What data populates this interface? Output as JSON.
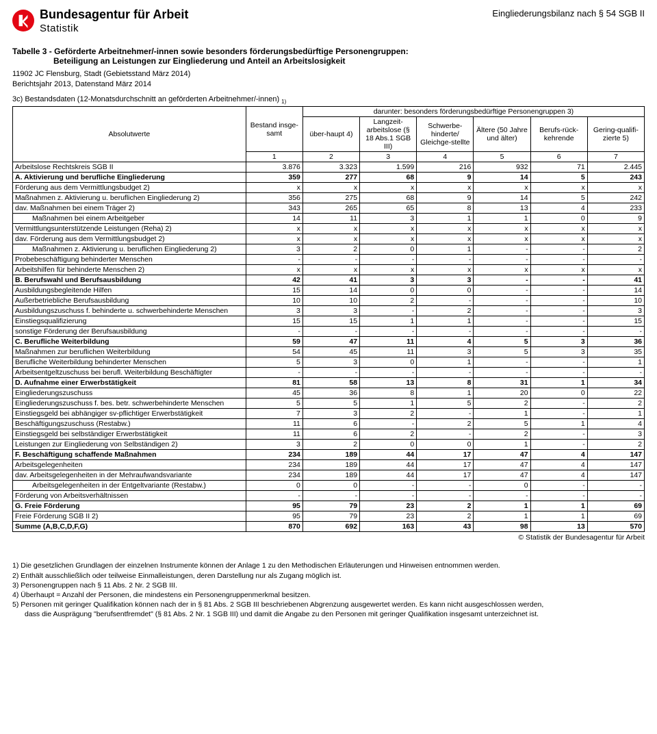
{
  "header": {
    "org": "Bundesagentur für Arbeit",
    "dept": "Statistik",
    "right": "Eingliederungsbilanz nach § 54 SGB II"
  },
  "title": {
    "line1": "Tabelle 3 - Geförderte Arbeitnehmer/-innen sowie besonders förderungsbedürftige Personengruppen:",
    "line2": "Beteiligung an Leistungen zur Eingliederung und Anteil an Arbeitslosigkeit"
  },
  "meta": {
    "region": "11902 JC Flensburg, Stadt (Gebietsstand März 2014)",
    "period": "Berichtsjahr 2013, Datenstand März 2014"
  },
  "section": "3c) Bestandsdaten (12-Monatsdurchschnitt an geförderten Arbeitnehmer/-innen) ",
  "section_note": "1)",
  "thead": {
    "rowlabel": "Absolutwerte",
    "c1": "Bestand insge-samt",
    "group": "darunter: besonders förderungsbedürftige Personengruppen 3)",
    "c2": "über-haupt 4)",
    "c3": "Langzeit-arbeitslose (§ 18 Abs.1 SGB III)",
    "c4": "Schwerbe-hinderte/ Gleichge-stellte",
    "c5": "Ältere (50 Jahre und älter)",
    "c6": "Berufs-rück-kehrende",
    "c7": "Gering-qualifi-zierte 5)",
    "nums": [
      "1",
      "2",
      "3",
      "4",
      "5",
      "6",
      "7"
    ]
  },
  "rows": [
    {
      "label": "Arbeitslose Rechtskreis SGB II",
      "indent": 0,
      "bold": false,
      "v": [
        "3.876",
        "3.323",
        "1.599",
        "216",
        "932",
        "71",
        "2.445"
      ]
    },
    {
      "label": "A. Aktivierung und berufliche Eingliederung",
      "indent": 0,
      "bold": true,
      "v": [
        "359",
        "277",
        "68",
        "9",
        "14",
        "5",
        "243"
      ]
    },
    {
      "label": "Förderung aus dem Vermittlungsbudget 2)",
      "indent": 0,
      "bold": false,
      "v": [
        "x",
        "x",
        "x",
        "x",
        "x",
        "x",
        "x"
      ]
    },
    {
      "label": "Maßnahmen z. Aktivierung u. beruflichen Eingliederung 2)",
      "indent": 0,
      "bold": false,
      "v": [
        "356",
        "275",
        "68",
        "9",
        "14",
        "5",
        "242"
      ]
    },
    {
      "label": "dav. Maßnahmen bei einem Träger 2)",
      "indent": 0,
      "bold": false,
      "v": [
        "343",
        "265",
        "65",
        "8",
        "13",
        "4",
        "233"
      ]
    },
    {
      "label": "Maßnahmen bei einem Arbeitgeber",
      "indent": 2,
      "bold": false,
      "v": [
        "14",
        "11",
        "3",
        "1",
        "1",
        "0",
        "9"
      ]
    },
    {
      "label": "Vermittlungsunterstützende Leistungen (Reha) 2)",
      "indent": 0,
      "bold": false,
      "v": [
        "x",
        "x",
        "x",
        "x",
        "x",
        "x",
        "x"
      ]
    },
    {
      "label": "dav. Förderung aus dem Vermittlungsbudget 2)",
      "indent": 0,
      "bold": false,
      "v": [
        "x",
        "x",
        "x",
        "x",
        "x",
        "x",
        "x"
      ]
    },
    {
      "label": "Maßnahmen z. Aktivierung u. beruflichen Eingliederung 2)",
      "indent": 2,
      "bold": false,
      "v": [
        "3",
        "2",
        "0",
        "1",
        "-",
        "-",
        "2"
      ]
    },
    {
      "label": "Probebeschäftigung behinderter Menschen",
      "indent": 0,
      "bold": false,
      "v": [
        "-",
        "-",
        "-",
        "-",
        "-",
        "-",
        "-"
      ]
    },
    {
      "label": "Arbeitshilfen für behinderte Menschen 2)",
      "indent": 0,
      "bold": false,
      "v": [
        "x",
        "x",
        "x",
        "x",
        "x",
        "x",
        "x"
      ]
    },
    {
      "label": "B. Berufswahl und Berufsausbildung",
      "indent": 0,
      "bold": true,
      "v": [
        "42",
        "41",
        "3",
        "3",
        "-",
        "-",
        "41"
      ]
    },
    {
      "label": "Ausbildungsbegleitende Hilfen",
      "indent": 0,
      "bold": false,
      "v": [
        "15",
        "14",
        "0",
        "0",
        "-",
        "-",
        "14"
      ]
    },
    {
      "label": "Außerbetriebliche Berufsausbildung",
      "indent": 0,
      "bold": false,
      "v": [
        "10",
        "10",
        "2",
        "-",
        "-",
        "-",
        "10"
      ]
    },
    {
      "label": "Ausbildungszuschuss f. behinderte u. schwerbehinderte Menschen",
      "indent": 0,
      "bold": false,
      "v": [
        "3",
        "3",
        "-",
        "2",
        "-",
        "-",
        "3"
      ]
    },
    {
      "label": "Einstiegsqualifizierung",
      "indent": 0,
      "bold": false,
      "v": [
        "15",
        "15",
        "1",
        "1",
        "-",
        "-",
        "15"
      ]
    },
    {
      "label": "sonstige Förderung der Berufsausbildung",
      "indent": 0,
      "bold": false,
      "v": [
        "-",
        "-",
        "-",
        "-",
        "-",
        "-",
        "-"
      ]
    },
    {
      "label": "C. Berufliche Weiterbildung",
      "indent": 0,
      "bold": true,
      "v": [
        "59",
        "47",
        "11",
        "4",
        "5",
        "3",
        "36"
      ]
    },
    {
      "label": "Maßnahmen zur beruflichen Weiterbildung",
      "indent": 0,
      "bold": false,
      "v": [
        "54",
        "45",
        "11",
        "3",
        "5",
        "3",
        "35"
      ]
    },
    {
      "label": "Berufliche Weiterbildung behinderter Menschen",
      "indent": 0,
      "bold": false,
      "v": [
        "5",
        "3",
        "0",
        "1",
        "-",
        "-",
        "1"
      ]
    },
    {
      "label": "Arbeitsentgeltzuschuss bei berufl. Weiterbildung Beschäftigter",
      "indent": 0,
      "bold": false,
      "v": [
        "-",
        "-",
        "-",
        "-",
        "-",
        "-",
        "-"
      ]
    },
    {
      "label": "D. Aufnahme einer Erwerbstätigkeit",
      "indent": 0,
      "bold": true,
      "v": [
        "81",
        "58",
        "13",
        "8",
        "31",
        "1",
        "34"
      ]
    },
    {
      "label": "Eingliederungszuschuss",
      "indent": 0,
      "bold": false,
      "v": [
        "45",
        "36",
        "8",
        "1",
        "20",
        "0",
        "22"
      ]
    },
    {
      "label": "Eingliederungszuschuss f. bes. betr. schwerbehinderte Menschen",
      "indent": 0,
      "bold": false,
      "v": [
        "5",
        "5",
        "1",
        "5",
        "2",
        "-",
        "2"
      ]
    },
    {
      "label": "Einstiegsgeld bei abhängiger sv-pflichtiger Erwerbstätigkeit",
      "indent": 0,
      "bold": false,
      "v": [
        "7",
        "3",
        "2",
        "-",
        "1",
        "-",
        "1"
      ]
    },
    {
      "label": "Beschäftigungszuschuss (Restabw.)",
      "indent": 0,
      "bold": false,
      "v": [
        "11",
        "6",
        "-",
        "2",
        "5",
        "1",
        "4"
      ]
    },
    {
      "label": "Einstiegsgeld bei selbständiger Erwerbstätigkeit",
      "indent": 0,
      "bold": false,
      "v": [
        "11",
        "6",
        "2",
        "-",
        "2",
        "-",
        "3"
      ]
    },
    {
      "label": "Leistungen zur Eingliederung von Selbständigen 2)",
      "indent": 0,
      "bold": false,
      "v": [
        "3",
        "2",
        "0",
        "0",
        "1",
        "-",
        "2"
      ]
    },
    {
      "label": "F. Beschäftigung schaffende Maßnahmen",
      "indent": 0,
      "bold": true,
      "v": [
        "234",
        "189",
        "44",
        "17",
        "47",
        "4",
        "147"
      ]
    },
    {
      "label": "Arbeitsgelegenheiten",
      "indent": 0,
      "bold": false,
      "v": [
        "234",
        "189",
        "44",
        "17",
        "47",
        "4",
        "147"
      ]
    },
    {
      "label": "dav. Arbeitsgelegenheiten in der Mehraufwandsvariante",
      "indent": 0,
      "bold": false,
      "v": [
        "234",
        "189",
        "44",
        "17",
        "47",
        "4",
        "147"
      ]
    },
    {
      "label": "Arbeitsgelegenheiten in der Entgeltvariante (Restabw.)",
      "indent": 2,
      "bold": false,
      "v": [
        "0",
        "0",
        "-",
        "-",
        "0",
        "-",
        "-"
      ]
    },
    {
      "label": "Förderung von Arbeitsverhältnissen",
      "indent": 0,
      "bold": false,
      "v": [
        "-",
        "-",
        "-",
        "-",
        "-",
        "-",
        "-"
      ]
    },
    {
      "label": "G. Freie Förderung",
      "indent": 0,
      "bold": true,
      "v": [
        "95",
        "79",
        "23",
        "2",
        "1",
        "1",
        "69"
      ]
    },
    {
      "label": "Freie Förderung SGB II 2)",
      "indent": 0,
      "bold": false,
      "v": [
        "95",
        "79",
        "23",
        "2",
        "1",
        "1",
        "69"
      ]
    },
    {
      "label": "Summe (A,B,C,D,F,G)",
      "indent": 0,
      "bold": true,
      "v": [
        "870",
        "692",
        "163",
        "43",
        "98",
        "13",
        "570"
      ]
    }
  ],
  "credit": "© Statistik der Bundesagentur für Arbeit",
  "footnotes": [
    "1) Die gesetzlichen Grundlagen der einzelnen Instrumente können der Anlage 1 zu den Methodischen Erläuterungen und Hinweisen entnommen werden.",
    "2) Enthält ausschließlich oder teilweise Einmalleistungen, deren Darstellung nur als Zugang möglich ist.",
    "3) Personengruppen nach § 11 Abs. 2 Nr. 2 SGB III.",
    "4) Überhaupt = Anzahl der Personen, die mindestens ein Personengruppenmerkmal besitzen.",
    "5) Personen mit geringer Qualifikation können nach der in § 81 Abs. 2 SGB III beschriebenen Abgrenzung ausgewertet werden. Es kann nicht ausgeschlossen werden,"
  ],
  "footnote_sub": "dass die Ausprägung \"berufsentfremdet\" (§ 81 Abs. 2 Nr. 1 SGB III) und damit die Angabe zu den Personen mit geringer Qualifikation insgesamt unterzeichnet ist."
}
